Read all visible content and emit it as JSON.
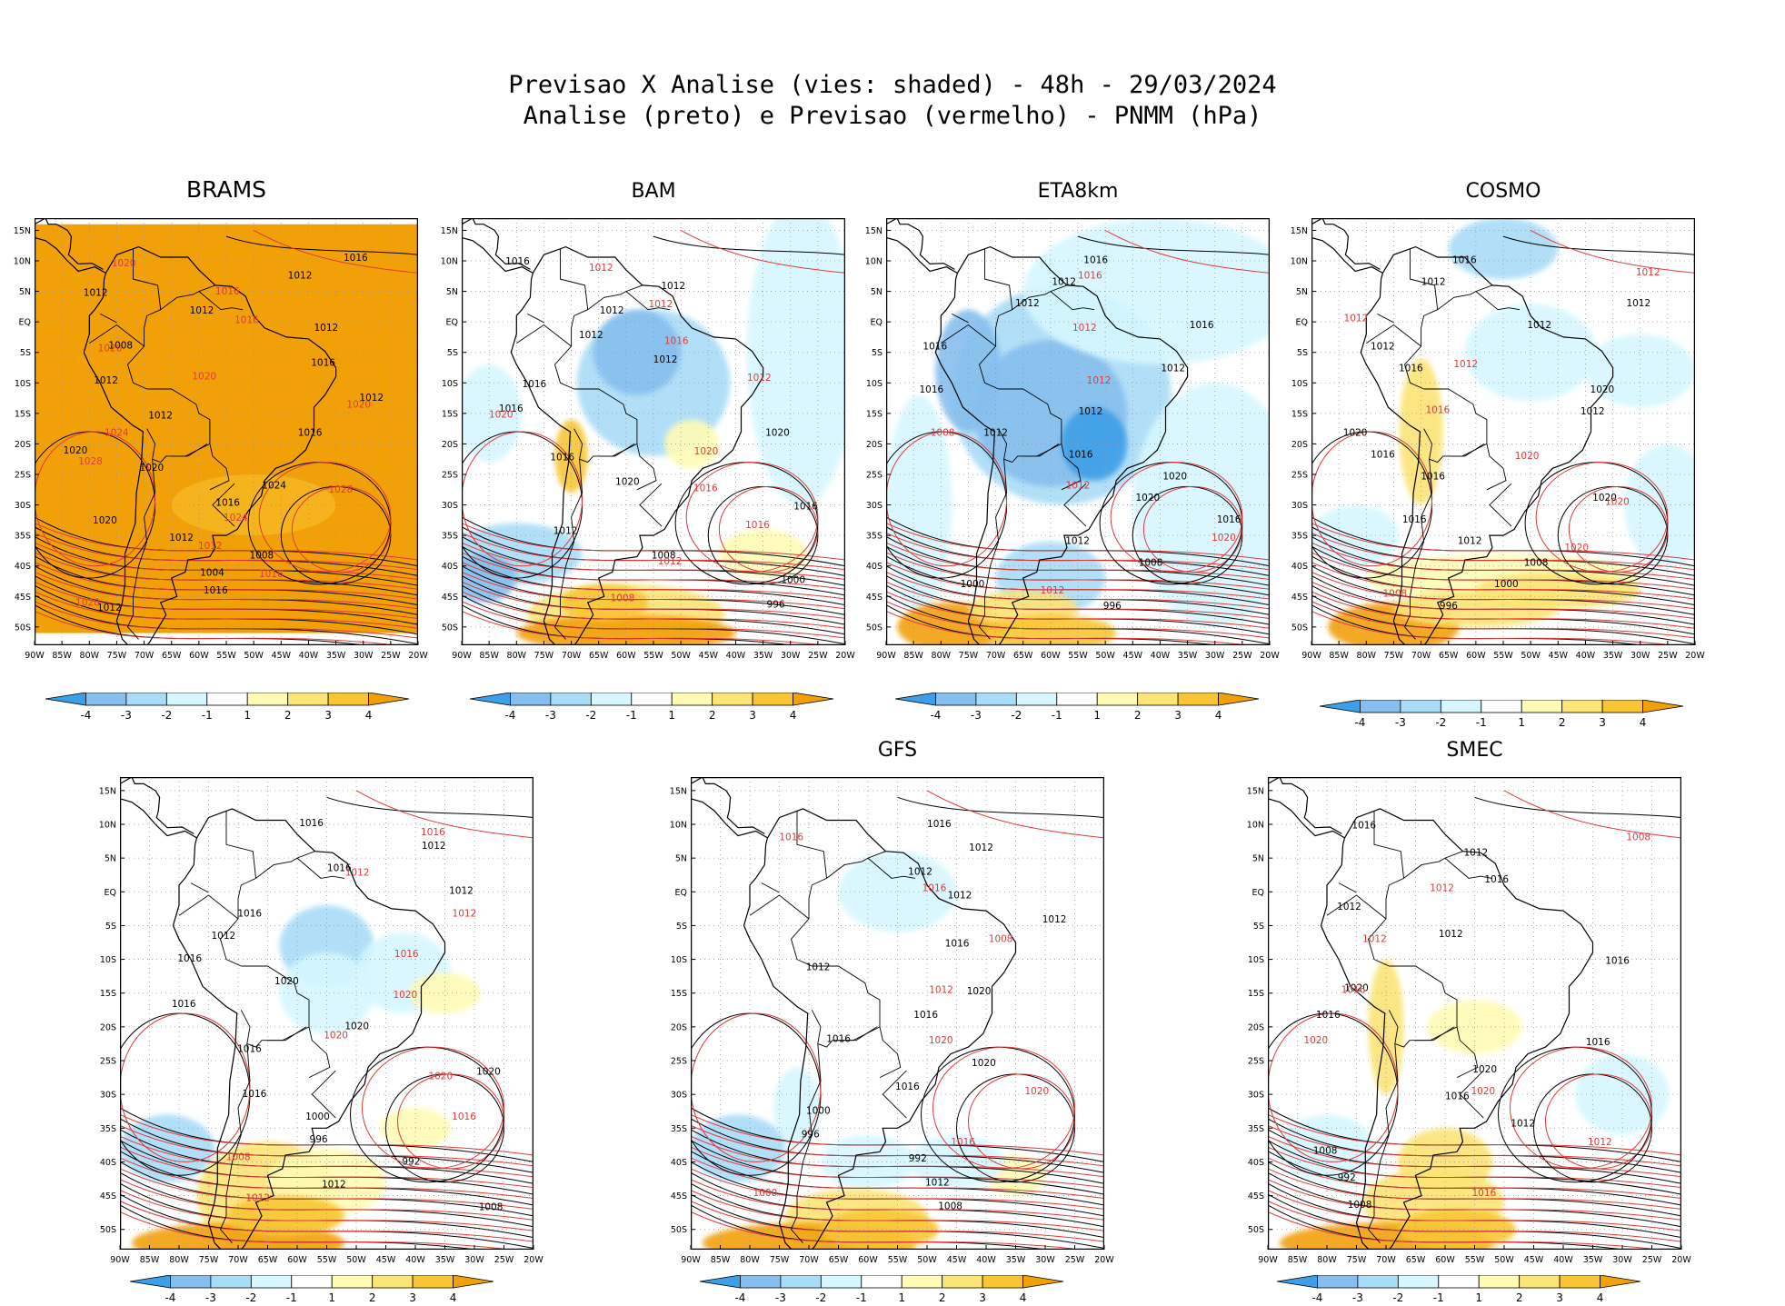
{
  "header": {
    "line1": "Previsao X Analise (vies: shaded) - 48h - 29/03/2024",
    "line2": "Analise (preto) e Previsao (vermelho) - PNMM (hPa)"
  },
  "colors": {
    "neg4": "#3d9fe8",
    "neg3": "#86bfee",
    "neg2": "#a9dcf7",
    "neg1": "#d6f7ff",
    "zero": "#ffffff",
    "pos1": "#fffbb4",
    "pos2": "#fce476",
    "pos3": "#f8c634",
    "pos4": "#f2a008",
    "analysis_line": "#000000",
    "forecast_line": "#e03a3a"
  },
  "axes": {
    "lon_labels": [
      "90W",
      "85W",
      "80W",
      "75W",
      "70W",
      "65W",
      "60W",
      "55W",
      "50W",
      "45W",
      "40W",
      "35W",
      "30W",
      "25W",
      "20W"
    ],
    "lat_labels": [
      "15N",
      "10N",
      "5N",
      "EQ",
      "5S",
      "10S",
      "15S",
      "20S",
      "25S",
      "30S",
      "35S",
      "40S",
      "45S",
      "50S"
    ]
  },
  "colorbar": {
    "tick_labels": [
      "-4",
      "-3",
      "-2",
      "-1",
      "1",
      "2",
      "3",
      "4"
    ]
  },
  "chart_data": [
    {
      "type": "heatmap",
      "model": "BRAMS",
      "title": "BRAMS",
      "xlim": [
        -90,
        -20
      ],
      "ylim": [
        -53,
        17
      ],
      "bias_field": "mostly positive (>4 hPa) over entire domain",
      "isobar_labels_analysis": [
        "1016",
        "1012",
        "1012",
        "1012",
        "1012",
        "1008",
        "1016",
        "1012",
        "1012",
        "1012",
        "1016",
        "1020",
        "1020",
        "1024",
        "1016",
        "1020",
        "1012",
        "1008",
        "1004",
        "1016",
        "1012"
      ],
      "isobar_labels_forecast": [
        "1020",
        "1016",
        "1016",
        "1020",
        "1020",
        "1020",
        "1024",
        "1028",
        "1028",
        "1024",
        "1012",
        "1016",
        "1020"
      ]
    },
    {
      "type": "heatmap",
      "model": "BAM",
      "title": "BAM",
      "xlim": [
        -90,
        -20
      ],
      "ylim": [
        -53,
        17
      ],
      "isobar_labels_analysis": [
        "1016",
        "1012",
        "1012",
        "1012",
        "1012",
        "1016",
        "1016",
        "1020",
        "1016",
        "1020",
        "1016",
        "1012",
        "1008",
        "1000",
        "996"
      ],
      "isobar_labels_forecast": [
        "1012",
        "1012",
        "1016",
        "1012",
        "1020",
        "1020",
        "1016",
        "1016",
        "1012",
        "1008"
      ]
    },
    {
      "type": "heatmap",
      "model": "ETA8km",
      "title": "ETA8km",
      "xlim": [
        -90,
        -20
      ],
      "ylim": [
        -53,
        17
      ],
      "isobar_labels_analysis": [
        "1016",
        "1012",
        "1012",
        "1016",
        "1016",
        "1012",
        "1016",
        "1012",
        "1012",
        "1016",
        "1020",
        "1020",
        "1016",
        "1012",
        "1008",
        "1000",
        "996"
      ],
      "isobar_labels_forecast": [
        "1016",
        "1012",
        "1012",
        "1008",
        "1012",
        "1020",
        "1012"
      ]
    },
    {
      "type": "heatmap",
      "model": "COSMO",
      "title": "COSMO",
      "xlim": [
        -90,
        -20
      ],
      "ylim": [
        -53,
        17
      ],
      "isobar_labels_analysis": [
        "1016",
        "1012",
        "1012",
        "1012",
        "1012",
        "1016",
        "1020",
        "1012",
        "1020",
        "1016",
        "1016",
        "1020",
        "1016",
        "1012",
        "1008",
        "1000",
        "996"
      ],
      "isobar_labels_forecast": [
        "1012",
        "1012",
        "1012",
        "1016",
        "1020",
        "1020",
        "1020",
        "1008"
      ]
    },
    {
      "type": "heatmap",
      "model": "",
      "title": "",
      "xlim": [
        -90,
        -20
      ],
      "ylim": [
        -53,
        17
      ],
      "isobar_labels_analysis": [
        "1016",
        "1012",
        "1016",
        "1012",
        "1016",
        "1012",
        "1016",
        "1020",
        "1016",
        "1020",
        "1016",
        "1020",
        "1016",
        "1000",
        "996",
        "992",
        "1012",
        "1008"
      ],
      "isobar_labels_forecast": [
        "1016",
        "1012",
        "1012",
        "1016",
        "1020",
        "1020",
        "1020",
        "1016",
        "1008",
        "1012"
      ]
    },
    {
      "type": "heatmap",
      "model": "GFS",
      "title": "GFS",
      "xlim": [
        -90,
        -20
      ],
      "ylim": [
        -53,
        17
      ],
      "isobar_labels_analysis": [
        "1016",
        "1012",
        "1012",
        "1012",
        "1012",
        "1016",
        "1012",
        "1020",
        "1016",
        "1016",
        "1020",
        "1016",
        "1000",
        "996",
        "992",
        "1012",
        "1008"
      ],
      "isobar_labels_forecast": [
        "1016",
        "1016",
        "1008",
        "1012",
        "1020",
        "1020",
        "1016",
        "1000"
      ]
    },
    {
      "type": "heatmap",
      "model": "SMEC",
      "title": "SMEC",
      "xlim": [
        -90,
        -20
      ],
      "ylim": [
        -53,
        17
      ],
      "isobar_labels_analysis": [
        "1016",
        "1012",
        "1016",
        "1012",
        "1012",
        "1016",
        "1020",
        "1016",
        "1016",
        "1020",
        "1016",
        "1012",
        "1008",
        "992",
        "1008"
      ],
      "isobar_labels_forecast": [
        "1008",
        "1012",
        "1012",
        "1016",
        "1020",
        "1020",
        "1012",
        "1016"
      ]
    }
  ]
}
